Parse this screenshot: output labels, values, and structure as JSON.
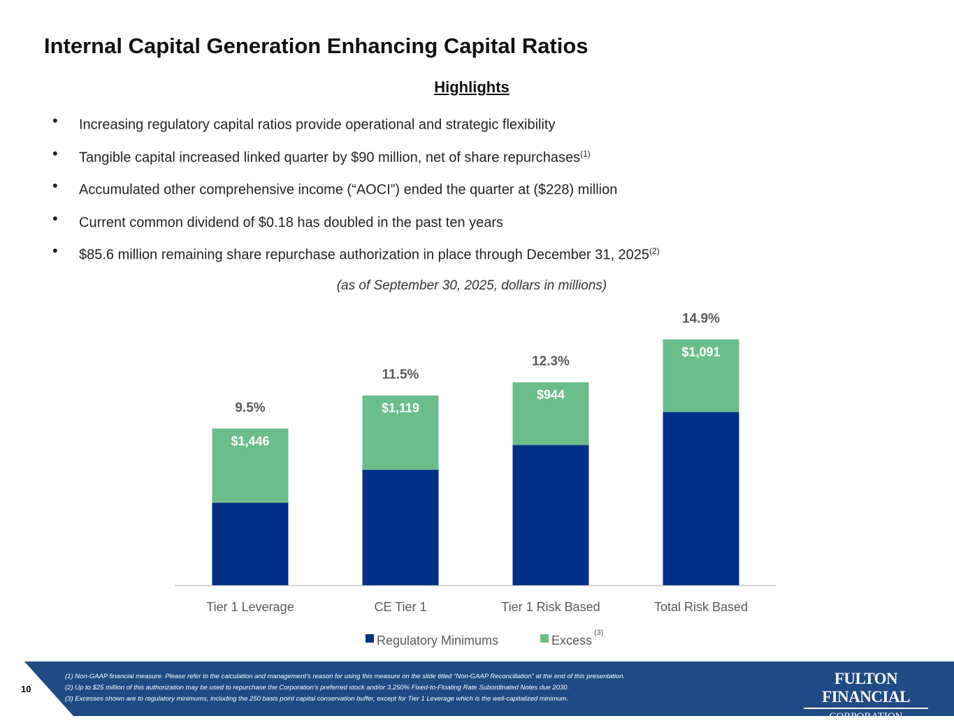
{
  "title": "Internal Capital Generation Enhancing Capital Ratios",
  "highlights_heading": "Highlights",
  "bullets": [
    {
      "text": "Increasing regulatory capital ratios provide operational and strategic flexibility",
      "note": ""
    },
    {
      "text": "Tangible capital increased linked quarter by $90 million, net of share repurchases",
      "note": "(1)"
    },
    {
      "text": "Accumulated other comprehensive income (“AOCI”) ended the quarter at ($228) million",
      "note": ""
    },
    {
      "text": "Current common dividend of $0.18 has doubled in the past ten years",
      "note": ""
    },
    {
      "text": "$85.6 million remaining share repurchase authorization in place through December 31, 2025",
      "note": "(2)"
    }
  ],
  "subtitle": "(as of September 30, 2025, dollars in millions)",
  "chart_data": {
    "type": "bar",
    "stacked": true,
    "categories": [
      "Tier 1 Leverage",
      "CE Tier 1",
      "Tier 1 Risk Based",
      "Total Risk Based"
    ],
    "series": [
      {
        "name": "Regulatory Minimums",
        "values": [
          5.0,
          7.0,
          8.5,
          10.5
        ],
        "color": "#003087"
      },
      {
        "name": "Excess",
        "name_note": "(3)",
        "values": [
          4.5,
          4.5,
          3.8,
          4.4
        ],
        "color": "#6bbd8a"
      }
    ],
    "total_labels": [
      "9.5%",
      "11.5%",
      "12.3%",
      "14.9%"
    ],
    "excess_labels": [
      "$1,446",
      "$1,119",
      "$944",
      "$1,091"
    ],
    "legend_position": "bottom",
    "grid": false
  },
  "footer": {
    "page": "10",
    "notes": [
      "(1) Non-GAAP financial measure. Please refer to the calculation and management’s reason for using this measure on the slide titled “Non-GAAP Reconciliation” at the end of this presentation.",
      "(2) Up to $25 million of this authorization may be used to repurchase the Corporation’s preferred stock and/or 3.250% Fixed-to-Floating Rate Subordinated Notes due 2030.",
      "(3) Excesses shown are to regulatory minimums, including the 250 basis point capital conservation buffer, except for Tier 1 Leverage which is the well-capitalized minimum."
    ],
    "logo_line1": "FULTON FINANCIAL",
    "logo_line2": "CORPORATION",
    "color": "#1f4a85"
  }
}
